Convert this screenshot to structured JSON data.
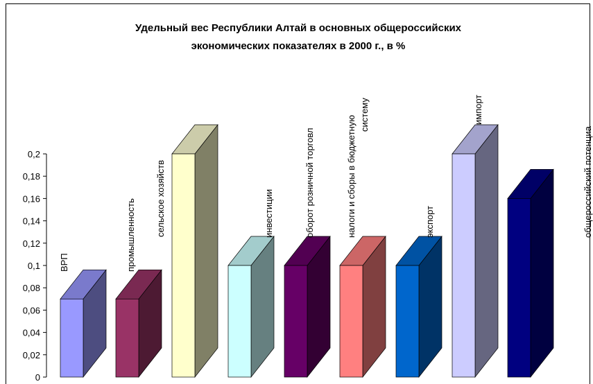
{
  "chart_data": {
    "type": "bar3d",
    "title": [
      "Удельный вес Республики Алтай в основных общероссийских",
      "экономических показателях в 2000 г., в %"
    ],
    "categories": [
      "ВРП",
      "промышленность",
      "сельское хозяйств",
      "инвестиции",
      "оборот розничной торговл",
      [
        "налоги и сборы в бюджетную",
        "систему"
      ],
      "экспорт",
      "импорт",
      "общероссийский потенциа"
    ],
    "values": [
      0.07,
      0.07,
      0.2,
      0.1,
      0.1,
      0.1,
      0.1,
      0.2,
      0.16
    ],
    "colors": [
      [
        "#9999ff",
        "#4d4d80",
        "#7a7acc"
      ],
      [
        "#993366",
        "#4d1a33",
        "#7a2952"
      ],
      [
        "#ffffcc",
        "#808066",
        "#ccccaa"
      ],
      [
        "#ccffff",
        "#668080",
        "#a3cccc"
      ],
      [
        "#660066",
        "#330033",
        "#520052"
      ],
      [
        "#ff8080",
        "#804040",
        "#cc6666"
      ],
      [
        "#0066cc",
        "#003366",
        "#0052a3"
      ],
      [
        "#ccccff",
        "#666680",
        "#a3a3cc"
      ],
      [
        "#000080",
        "#000040",
        "#000066"
      ]
    ],
    "ylim": [
      0,
      0.2
    ],
    "yticks": [
      0,
      {
        "value": 0.02,
        "label": "0,02"
      },
      {
        "value": 0.04,
        "label": "0,04"
      },
      {
        "value": 0.06,
        "label": "0,06"
      },
      {
        "value": 0.08,
        "label": "0,08"
      },
      {
        "value": 0.1,
        "label": "0,1"
      },
      {
        "value": 0.12,
        "label": "0,12"
      },
      {
        "value": 0.14,
        "label": "0,14"
      },
      {
        "value": 0.16,
        "label": "0,16"
      },
      {
        "value": 0.18,
        "label": "0,18"
      },
      {
        "value": 0.2,
        "label": "0,2"
      }
    ]
  }
}
